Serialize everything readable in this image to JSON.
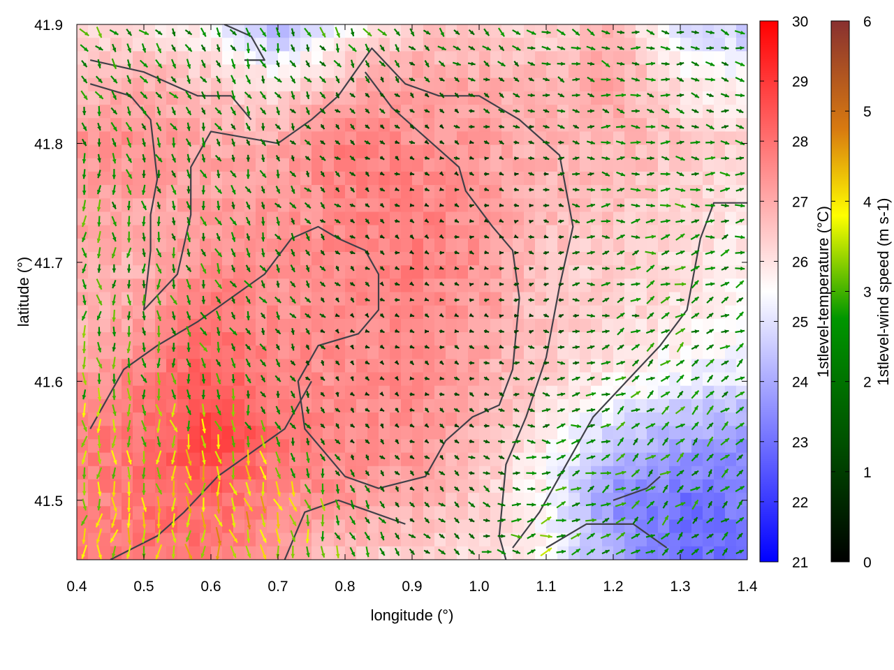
{
  "chart_data": {
    "type": "heatmap",
    "title": "",
    "xlabel": "longitude (°)",
    "ylabel": "latitude (°)",
    "xlim": [
      0.4,
      1.4
    ],
    "ylim": [
      41.45,
      41.9
    ],
    "x_ticks": [
      "0.4",
      "0.5",
      "0.6",
      "0.7",
      "0.8",
      "0.9",
      "1.0",
      "1.1",
      "1.2",
      "1.3",
      "1.4"
    ],
    "y_ticks": [
      "41.5",
      "41.6",
      "41.7",
      "41.8",
      "41.9"
    ],
    "grid": false,
    "temperature": {
      "label": "1stlevel-temperature (°C)",
      "range": [
        21,
        30
      ],
      "ticks": [
        "21",
        "22",
        "23",
        "24",
        "25",
        "26",
        "27",
        "28",
        "29",
        "30"
      ],
      "colors": [
        "#0000ff",
        "#ffffff",
        "#ff0000"
      ],
      "lons": [
        0.4,
        0.5,
        0.6,
        0.7,
        0.8,
        0.9,
        1.0,
        1.1,
        1.2,
        1.3,
        1.4
      ],
      "lats": [
        41.9,
        41.85,
        41.8,
        41.75,
        41.7,
        41.65,
        41.6,
        41.55,
        41.5,
        41.45
      ],
      "values": [
        [
          26.2,
          26.0,
          25.5,
          24.0,
          25.5,
          26.3,
          26.5,
          26.2,
          26.8,
          25.0,
          24.5
        ],
        [
          26.5,
          27.0,
          26.5,
          26.0,
          26.8,
          27.2,
          27.0,
          26.8,
          27.2,
          26.0,
          25.5
        ],
        [
          27.5,
          27.5,
          27.0,
          27.0,
          27.8,
          27.5,
          27.2,
          26.8,
          26.8,
          26.5,
          26.2
        ],
        [
          27.2,
          27.0,
          27.2,
          27.3,
          27.6,
          27.8,
          27.3,
          26.8,
          26.6,
          26.3,
          25.8
        ],
        [
          27.0,
          26.8,
          27.5,
          27.4,
          27.6,
          27.8,
          27.4,
          26.5,
          26.3,
          26.2,
          25.8
        ],
        [
          26.8,
          27.2,
          28.0,
          27.5,
          27.5,
          27.6,
          27.2,
          26.5,
          26.2,
          26.0,
          25.5
        ],
        [
          27.2,
          27.8,
          28.5,
          27.7,
          27.4,
          27.6,
          27.0,
          26.3,
          25.8,
          25.2,
          25.0
        ],
        [
          27.8,
          28.0,
          29.0,
          28.0,
          27.6,
          27.4,
          26.8,
          25.8,
          24.5,
          24.0,
          23.5
        ],
        [
          27.5,
          28.0,
          28.2,
          27.6,
          27.3,
          27.0,
          26.4,
          25.5,
          23.5,
          23.0,
          23.2
        ],
        [
          27.8,
          28.0,
          27.8,
          27.2,
          26.5,
          26.2,
          26.2,
          25.5,
          24.0,
          23.0,
          22.8
        ]
      ]
    },
    "wind_speed": {
      "label": "1stlevel-wind speed (m s-1)",
      "range": [
        0,
        6
      ],
      "ticks": [
        "0",
        "1",
        "2",
        "3",
        "4",
        "5",
        "6"
      ],
      "colors": [
        "#000000",
        "#005000",
        "#009600",
        "#ffff00",
        "#d87a10",
        "#883030"
      ],
      "lons": [
        0.4,
        0.5,
        0.6,
        0.7,
        0.8,
        0.9,
        1.0,
        1.1,
        1.2,
        1.3,
        1.4
      ],
      "lats": [
        41.9,
        41.85,
        41.8,
        41.75,
        41.7,
        41.65,
        41.6,
        41.55,
        41.5,
        41.45
      ],
      "speed": [
        [
          2.5,
          2.2,
          2.0,
          2.0,
          2.5,
          2.0,
          2.0,
          2.2,
          2.0,
          2.0,
          2.0
        ],
        [
          2.2,
          2.0,
          2.0,
          1.8,
          1.5,
          1.2,
          1.5,
          1.5,
          2.0,
          2.0,
          2.0
        ],
        [
          2.2,
          2.0,
          2.0,
          1.5,
          1.2,
          1.0,
          1.0,
          1.2,
          2.0,
          2.0,
          2.0
        ],
        [
          2.5,
          2.0,
          2.0,
          1.8,
          1.2,
          0.8,
          0.8,
          1.0,
          2.0,
          2.2,
          2.0
        ],
        [
          2.5,
          2.0,
          2.2,
          1.8,
          1.2,
          0.8,
          0.8,
          1.0,
          2.0,
          2.2,
          2.0
        ],
        [
          2.5,
          2.2,
          2.2,
          1.8,
          0.8,
          0.8,
          0.8,
          1.0,
          1.8,
          2.2,
          2.0
        ],
        [
          2.8,
          2.5,
          2.4,
          1.5,
          0.8,
          0.8,
          1.0,
          1.5,
          2.2,
          2.2,
          2.0
        ],
        [
          3.0,
          3.0,
          3.5,
          2.5,
          1.0,
          0.9,
          1.2,
          2.0,
          2.2,
          2.2,
          2.0
        ],
        [
          3.0,
          3.5,
          3.8,
          3.8,
          2.0,
          1.2,
          1.5,
          2.5,
          2.2,
          2.2,
          2.0
        ],
        [
          3.2,
          3.5,
          3.8,
          3.8,
          2.5,
          1.5,
          1.8,
          2.8,
          2.2,
          2.0,
          2.0
        ]
      ],
      "direction_deg": [
        [
          140,
          135,
          150,
          160,
          150,
          140,
          130,
          120,
          110,
          100,
          110
        ],
        [
          150,
          140,
          150,
          150,
          140,
          130,
          120,
          110,
          100,
          100,
          100
        ],
        [
          170,
          160,
          160,
          150,
          130,
          120,
          110,
          100,
          100,
          100,
          90
        ],
        [
          180,
          170,
          165,
          150,
          130,
          120,
          100,
          90,
          90,
          90,
          80
        ],
        [
          180,
          175,
          165,
          150,
          130,
          110,
          100,
          90,
          80,
          70,
          70
        ],
        [
          180,
          175,
          160,
          150,
          130,
          110,
          100,
          90,
          70,
          60,
          60
        ],
        [
          180,
          170,
          165,
          150,
          140,
          120,
          110,
          90,
          60,
          50,
          50
        ],
        [
          185,
          175,
          170,
          160,
          150,
          130,
          120,
          90,
          60,
          45,
          45
        ],
        [
          190,
          180,
          170,
          165,
          160,
          140,
          120,
          80,
          60,
          50,
          45
        ],
        [
          190,
          185,
          175,
          170,
          160,
          140,
          110,
          70,
          55,
          50,
          45
        ]
      ]
    },
    "coastlines": [
      [
        [
          0.42,
          41.87
        ],
        [
          0.5,
          41.86
        ],
        [
          0.58,
          41.84
        ],
        [
          0.63,
          41.84
        ],
        [
          0.66,
          41.82
        ]
      ],
      [
        [
          0.62,
          41.9
        ],
        [
          0.66,
          41.89
        ],
        [
          0.68,
          41.87
        ],
        [
          0.65,
          41.87
        ]
      ],
      [
        [
          0.42,
          41.85
        ],
        [
          0.48,
          41.84
        ],
        [
          0.51,
          41.82
        ],
        [
          0.52,
          41.77
        ],
        [
          0.51,
          41.74
        ],
        [
          0.51,
          41.71
        ],
        [
          0.5,
          41.66
        ],
        [
          0.55,
          41.69
        ],
        [
          0.57,
          41.74
        ],
        [
          0.57,
          41.78
        ],
        [
          0.6,
          41.81
        ],
        [
          0.7,
          41.8
        ],
        [
          0.75,
          41.82
        ],
        [
          0.79,
          41.84
        ],
        [
          0.84,
          41.88
        ],
        [
          0.89,
          41.85
        ],
        [
          0.94,
          41.84
        ],
        [
          1.0,
          41.84
        ],
        [
          1.06,
          41.82
        ],
        [
          1.12,
          41.79
        ],
        [
          1.14,
          41.73
        ],
        [
          1.12,
          41.68
        ],
        [
          1.1,
          41.62
        ],
        [
          1.07,
          41.57
        ],
        [
          1.04,
          41.53
        ],
        [
          1.03,
          41.47
        ],
        [
          1.04,
          41.45
        ]
      ],
      [
        [
          0.83,
          41.86
        ],
        [
          0.87,
          41.83
        ],
        [
          0.93,
          41.8
        ],
        [
          0.97,
          41.78
        ],
        [
          0.98,
          41.76
        ],
        [
          1.02,
          41.73
        ],
        [
          1.05,
          41.71
        ],
        [
          1.06,
          41.67
        ],
        [
          1.05,
          41.61
        ],
        [
          1.03,
          41.58
        ],
        [
          0.99,
          41.57
        ],
        [
          0.95,
          41.55
        ],
        [
          0.92,
          41.52
        ],
        [
          0.85,
          41.51
        ],
        [
          0.8,
          41.52
        ],
        [
          0.77,
          41.54
        ],
        [
          0.74,
          41.56
        ],
        [
          0.73,
          41.6
        ],
        [
          0.76,
          41.63
        ],
        [
          0.82,
          41.64
        ],
        [
          0.85,
          41.66
        ],
        [
          0.85,
          41.69
        ],
        [
          0.83,
          41.71
        ],
        [
          0.79,
          41.72
        ],
        [
          0.76,
          41.73
        ],
        [
          0.72,
          41.72
        ],
        [
          0.68,
          41.69
        ],
        [
          0.63,
          41.67
        ],
        [
          0.58,
          41.65
        ],
        [
          0.52,
          41.63
        ],
        [
          0.47,
          41.61
        ],
        [
          0.44,
          41.58
        ],
        [
          0.42,
          41.56
        ]
      ],
      [
        [
          0.45,
          41.45
        ],
        [
          0.52,
          41.47
        ],
        [
          0.56,
          41.49
        ],
        [
          0.61,
          41.52
        ],
        [
          0.66,
          41.54
        ],
        [
          0.71,
          41.56
        ],
        [
          0.75,
          41.6
        ]
      ],
      [
        [
          1.05,
          41.46
        ],
        [
          1.09,
          41.49
        ],
        [
          1.13,
          41.53
        ],
        [
          1.17,
          41.57
        ],
        [
          1.22,
          41.6
        ],
        [
          1.27,
          41.63
        ],
        [
          1.31,
          41.66
        ],
        [
          1.33,
          41.72
        ],
        [
          1.35,
          41.75
        ],
        [
          1.4,
          41.75
        ]
      ],
      [
        [
          1.2,
          41.5
        ],
        [
          1.25,
          41.51
        ],
        [
          1.27,
          41.52
        ]
      ],
      [
        [
          1.1,
          41.46
        ],
        [
          1.16,
          41.48
        ],
        [
          1.23,
          41.48
        ],
        [
          1.28,
          41.46
        ]
      ],
      [
        [
          0.71,
          41.45
        ],
        [
          0.74,
          41.49
        ],
        [
          0.79,
          41.5
        ],
        [
          0.84,
          41.49
        ],
        [
          0.89,
          41.48
        ]
      ]
    ]
  }
}
